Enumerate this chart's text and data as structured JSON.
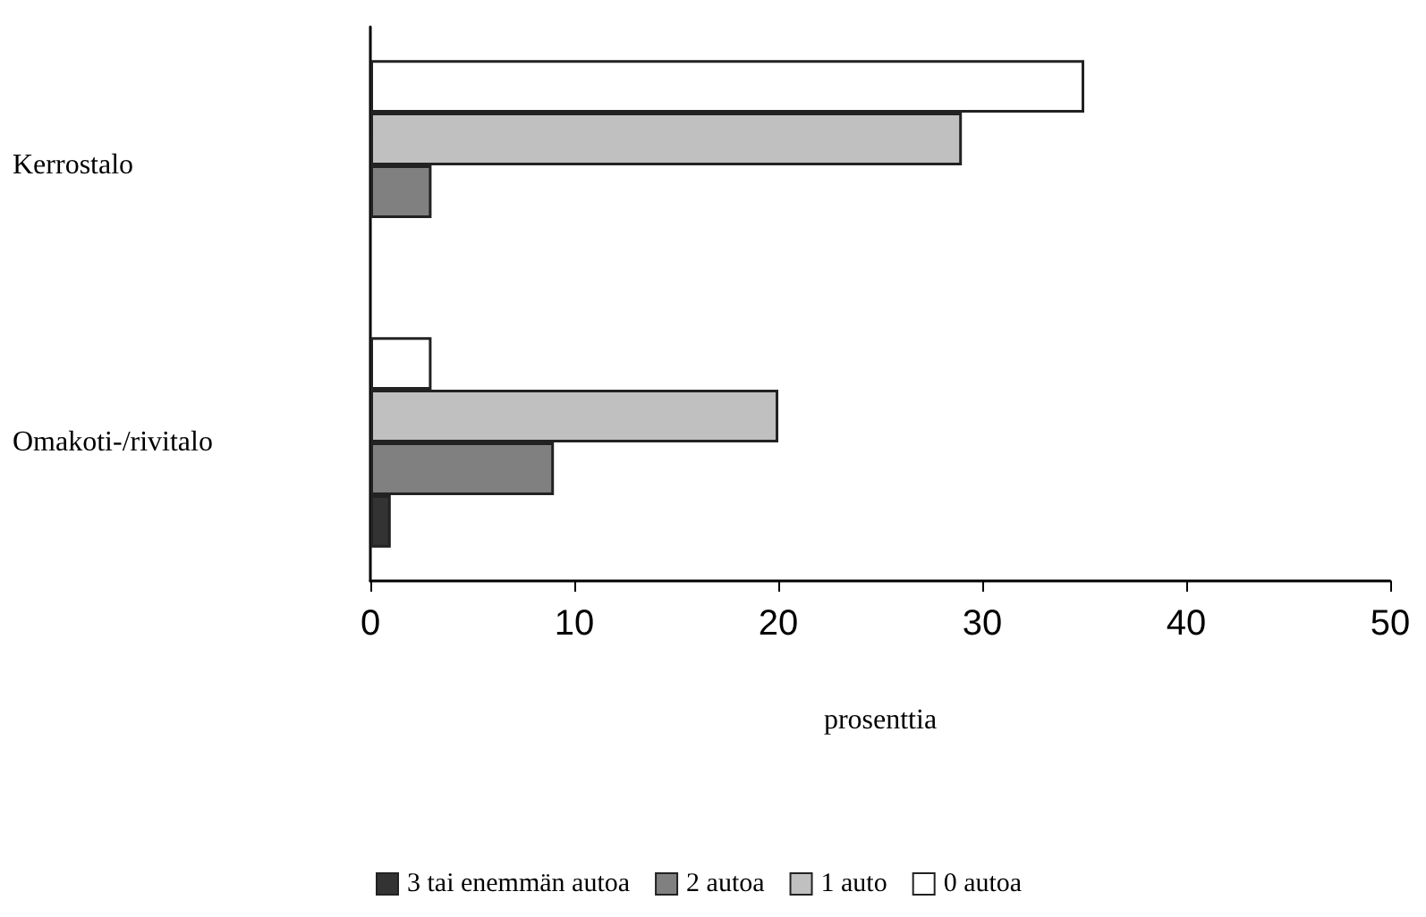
{
  "chart_data": {
    "type": "bar",
    "orientation": "horizontal",
    "xlabel": "prosenttia",
    "categories": [
      "Kerrostalo",
      "Omakoti-/rivitalo"
    ],
    "series": [
      {
        "name": "3 tai enemmän autoa",
        "color": "#333333",
        "values": [
          null,
          1
        ]
      },
      {
        "name": "2 autoa",
        "color": "#808080",
        "values": [
          3,
          9
        ]
      },
      {
        "name": "1 auto",
        "color": "#c0c0c0",
        "values": [
          29,
          20
        ]
      },
      {
        "name": "0 autoa",
        "color": "#ffffff",
        "values": [
          35,
          3
        ]
      }
    ],
    "xlim": [
      0,
      50
    ],
    "xticks": [
      0,
      10,
      20,
      30,
      40,
      50
    ],
    "grid": false,
    "legend": "bottom"
  }
}
